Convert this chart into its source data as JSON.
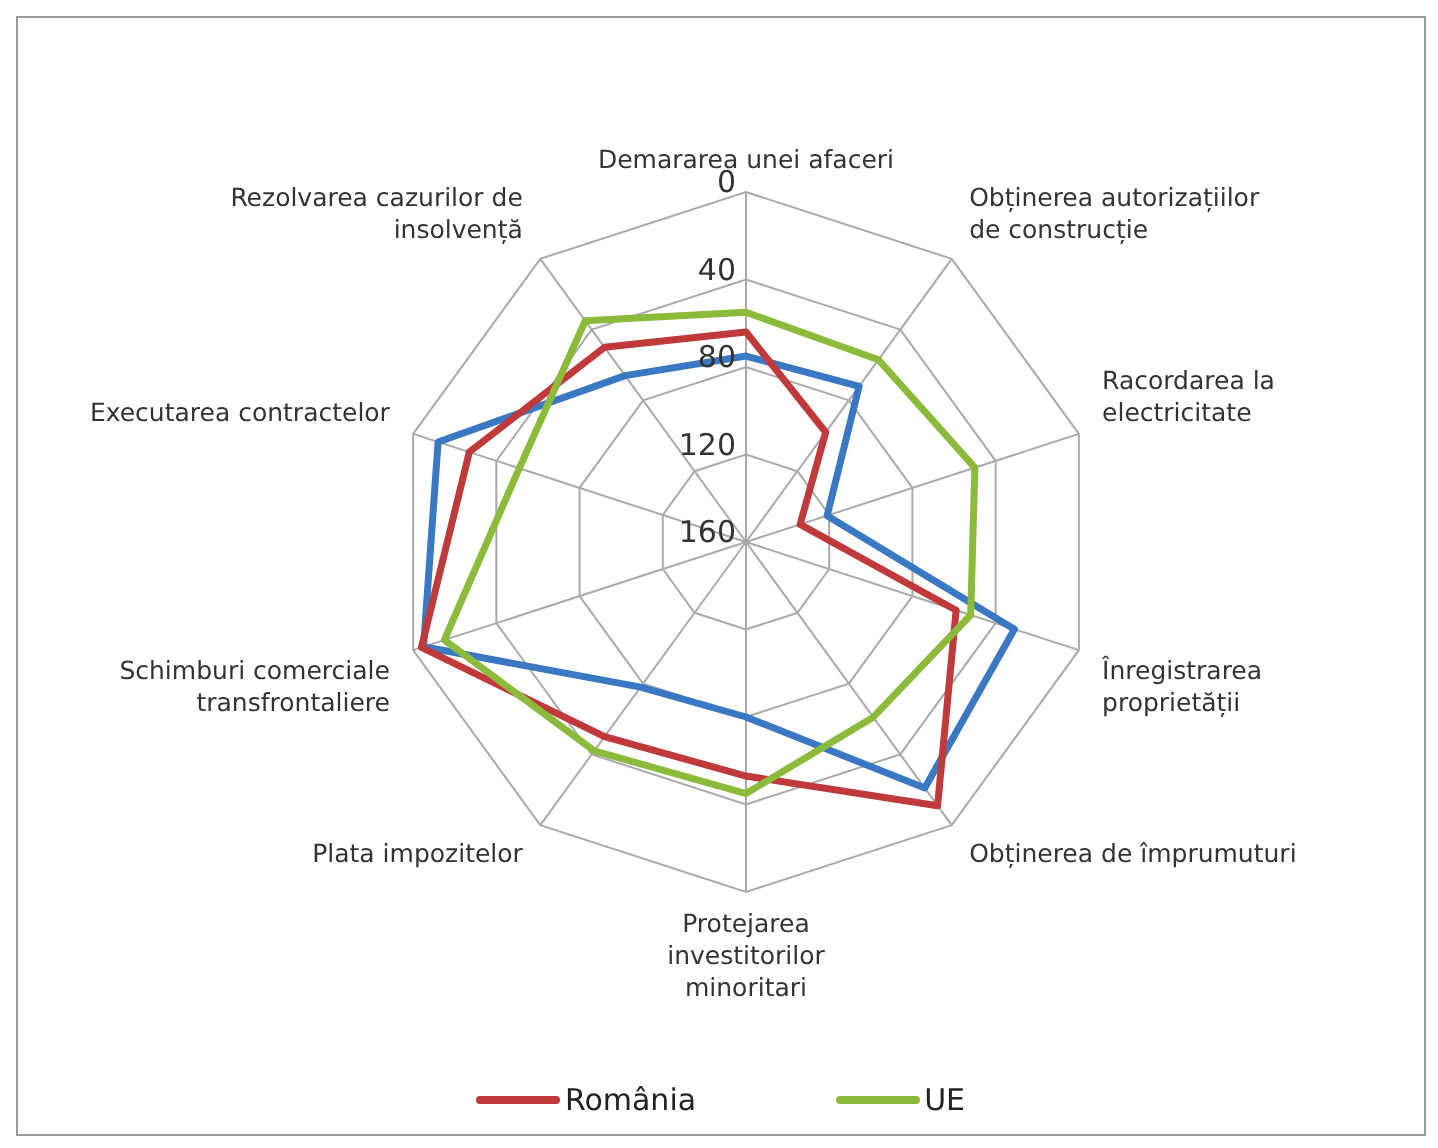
{
  "chart_data": {
    "type": "radar",
    "categories": [
      "Demararea unei afaceri",
      "Obținerea autorizațiilor de construcție",
      "Racordarea la electricitate",
      "Înregistrarea proprietății",
      "Obținerea de împrumuturi",
      "Protejarea investitorilor minoritari",
      "Plata impozitelor",
      "Schimburi comerciale transfrontaliere",
      "Executarea contractelor",
      "Rezolvarea cazurilor de insolvență"
    ],
    "series": [
      {
        "color": "#3a78c3",
        "values": [
          75,
          72,
          121,
          31,
          21,
          80,
          78,
          5,
          12,
          66
        ]
      },
      {
        "name": "România",
        "color": "#c0393b",
        "values": [
          64,
          98,
          134,
          59,
          11,
          53,
          50,
          4,
          27,
          50
        ]
      },
      {
        "name": "UE",
        "color": "#8cbb3c",
        "values": [
          55,
          57,
          50,
          52,
          61,
          45,
          42,
          15,
          51,
          35
        ]
      }
    ],
    "ylim": [
      160,
      0
    ],
    "yticks": [
      0,
      40,
      80,
      120,
      160
    ],
    "legend": "bottom"
  }
}
